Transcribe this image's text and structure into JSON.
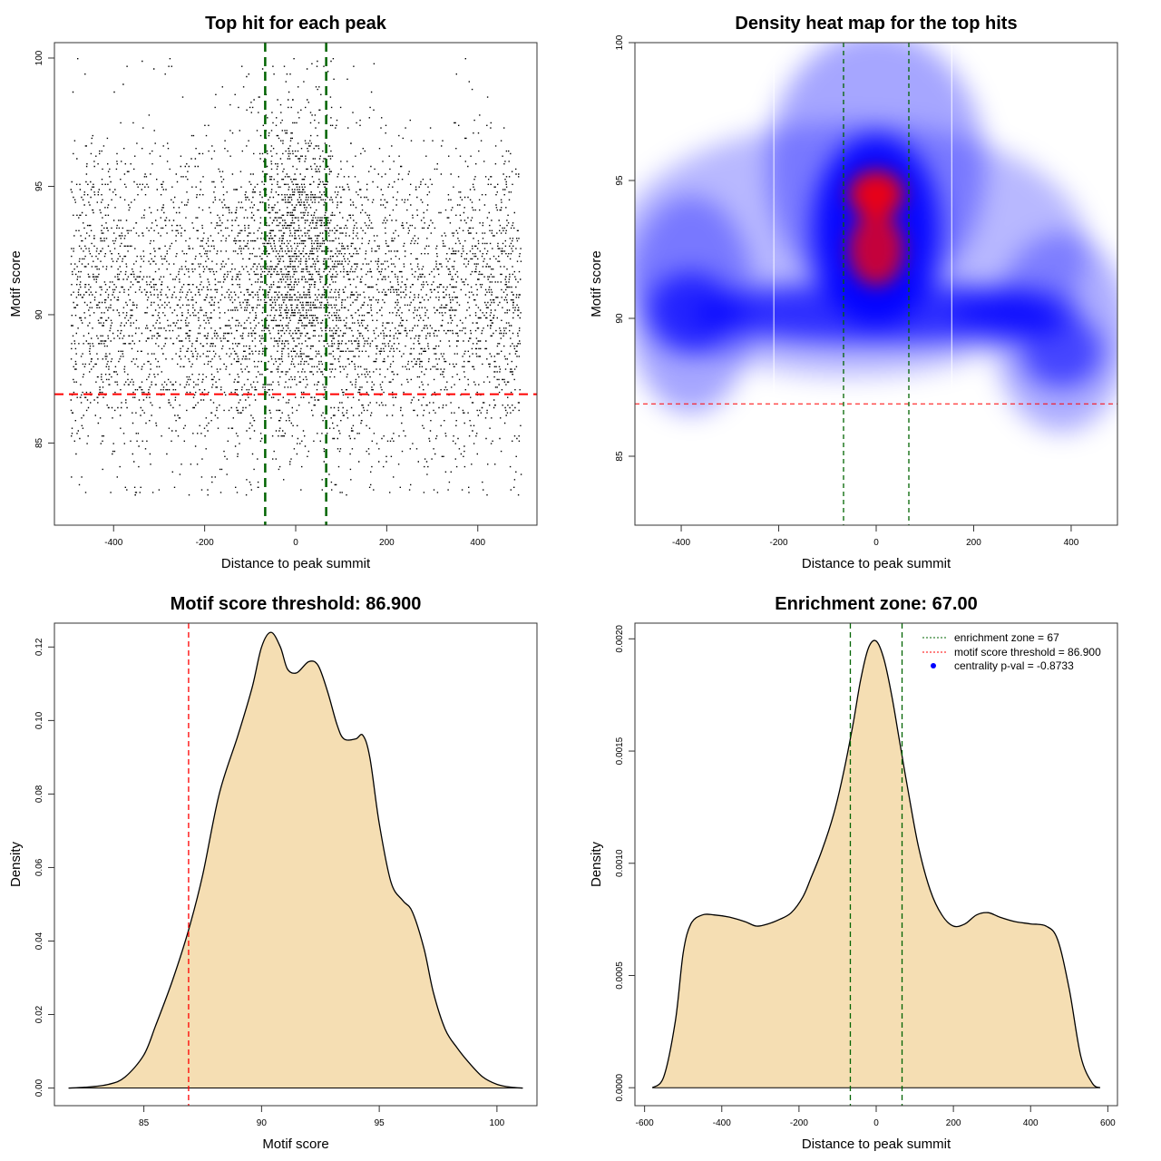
{
  "chart_data": [
    {
      "id": "scatter",
      "type": "scatter",
      "title": "Top hit for each peak",
      "xlabel": "Distance to peak summit",
      "ylabel": "Motif score",
      "xlim": [
        -530,
        530
      ],
      "ylim": [
        81.8,
        100.6
      ],
      "xticks": [
        -400,
        -200,
        0,
        200,
        400
      ],
      "yticks": [
        85,
        90,
        95,
        100
      ],
      "grid": false,
      "h_threshold": 86.9,
      "v_lines": [
        -67,
        67
      ],
      "n_points_approx": 6000,
      "x_range": [
        -495,
        495
      ],
      "score_distribution_mode": 90.5,
      "score_distribution_range": [
        83,
        100
      ]
    },
    {
      "id": "heatmap",
      "type": "heatmap",
      "title": "Density heat map for the top hits",
      "xlabel": "Distance to peak summit",
      "ylabel": "Motif score",
      "xlim": [
        -495,
        495
      ],
      "ylim": [
        82.5,
        100
      ],
      "xticks": [
        -400,
        -200,
        0,
        200,
        400
      ],
      "yticks": [
        85,
        90,
        95,
        100
      ],
      "grid": false,
      "h_threshold": 86.9,
      "v_lines": [
        -67,
        67
      ],
      "colors": {
        "low": "#ffffff",
        "mid": "#0000ff",
        "high": "#ff0000"
      },
      "hotspots": [
        {
          "x": 0,
          "y": 94.5,
          "weight": 1.0
        },
        {
          "x": 0,
          "y": 92.5,
          "weight": 0.85
        },
        {
          "x": -380,
          "y": 90.2,
          "weight": 0.55
        },
        {
          "x": 380,
          "y": 88.8,
          "weight": 0.45
        }
      ]
    },
    {
      "id": "density-score",
      "type": "area",
      "title": "Motif score threshold: 86.900",
      "xlabel": "Motif score",
      "ylabel": "Density",
      "xlim": [
        81.2,
        101.7
      ],
      "ylim": [
        -0.0048,
        0.1265
      ],
      "xticks": [
        85,
        90,
        95,
        100
      ],
      "yticks": [
        0.0,
        0.02,
        0.04,
        0.06,
        0.08,
        0.1,
        0.12
      ],
      "ytick_labels": [
        "0.00",
        "0.02",
        "0.04",
        "0.06",
        "0.08",
        "0.10",
        "0.12"
      ],
      "grid": false,
      "fill": "#f5deb3",
      "v_lines": [
        86.9
      ],
      "x": [
        81.8,
        82.5,
        83.5,
        84.2,
        85,
        85.5,
        86.2,
        86.9,
        87.5,
        88.2,
        89,
        89.6,
        90,
        90.4,
        90.8,
        91.1,
        91.5,
        92,
        92.4,
        92.8,
        93.2,
        93.5,
        94,
        94.3,
        94.6,
        95,
        95.5,
        96,
        96.4,
        96.9,
        97.3,
        97.8,
        98.3,
        98.8,
        99.4,
        100,
        100.6,
        101.1
      ],
      "y": [
        0.0,
        0.0002,
        0.001,
        0.003,
        0.009,
        0.017,
        0.029,
        0.043,
        0.058,
        0.08,
        0.096,
        0.109,
        0.12,
        0.124,
        0.12,
        0.114,
        0.113,
        0.116,
        0.115,
        0.108,
        0.099,
        0.095,
        0.095,
        0.096,
        0.09,
        0.072,
        0.056,
        0.051,
        0.048,
        0.038,
        0.026,
        0.016,
        0.011,
        0.007,
        0.003,
        0.001,
        0.0002,
        0.0
      ]
    },
    {
      "id": "density-distance",
      "type": "area",
      "title": "Enrichment zone: 67.00",
      "xlabel": "Distance to peak summit",
      "ylabel": "Density",
      "xlim": [
        -625,
        625
      ],
      "ylim": [
        -8e-05,
        0.00207
      ],
      "xticks": [
        -600,
        -400,
        -200,
        0,
        200,
        400,
        600
      ],
      "yticks": [
        0.0,
        0.0005,
        0.001,
        0.0015,
        0.002
      ],
      "ytick_labels": [
        "0.0000",
        "0.0005",
        "0.0010",
        "0.0015",
        "0.0020"
      ],
      "grid": false,
      "fill": "#f5deb3",
      "v_lines": [
        -67,
        67
      ],
      "x": [
        -580,
        -550,
        -520,
        -500,
        -480,
        -450,
        -420,
        -380,
        -340,
        -310,
        -280,
        -250,
        -220,
        -190,
        -170,
        -140,
        -110,
        -85,
        -60,
        -40,
        -20,
        0,
        20,
        40,
        60,
        85,
        110,
        140,
        170,
        200,
        230,
        260,
        290,
        320,
        360,
        400,
        440,
        470,
        500,
        530,
        560,
        580
      ],
      "y": [
        0.0,
        5e-05,
        0.0003,
        0.0006,
        0.00073,
        0.00077,
        0.00077,
        0.00076,
        0.00074,
        0.00072,
        0.00073,
        0.00075,
        0.00078,
        0.00085,
        0.00093,
        0.00106,
        0.00122,
        0.0014,
        0.00162,
        0.00182,
        0.00196,
        0.00199,
        0.00191,
        0.00175,
        0.00155,
        0.0013,
        0.00107,
        0.00088,
        0.00077,
        0.00072,
        0.00073,
        0.00077,
        0.00078,
        0.00076,
        0.00074,
        0.00073,
        0.00072,
        0.00066,
        0.00044,
        0.00014,
        2e-05,
        0.0
      ]
    }
  ],
  "legend": {
    "placement": "top-right",
    "items": [
      {
        "label": "enrichment zone = 67",
        "color": "#006400",
        "style": "dotted"
      },
      {
        "label": "motif score threshold = 86.900",
        "color": "#ff0000",
        "style": "dotted"
      },
      {
        "label": "centrality p-val = -0.8733",
        "color": "#0000ff",
        "style": "point"
      }
    ]
  }
}
